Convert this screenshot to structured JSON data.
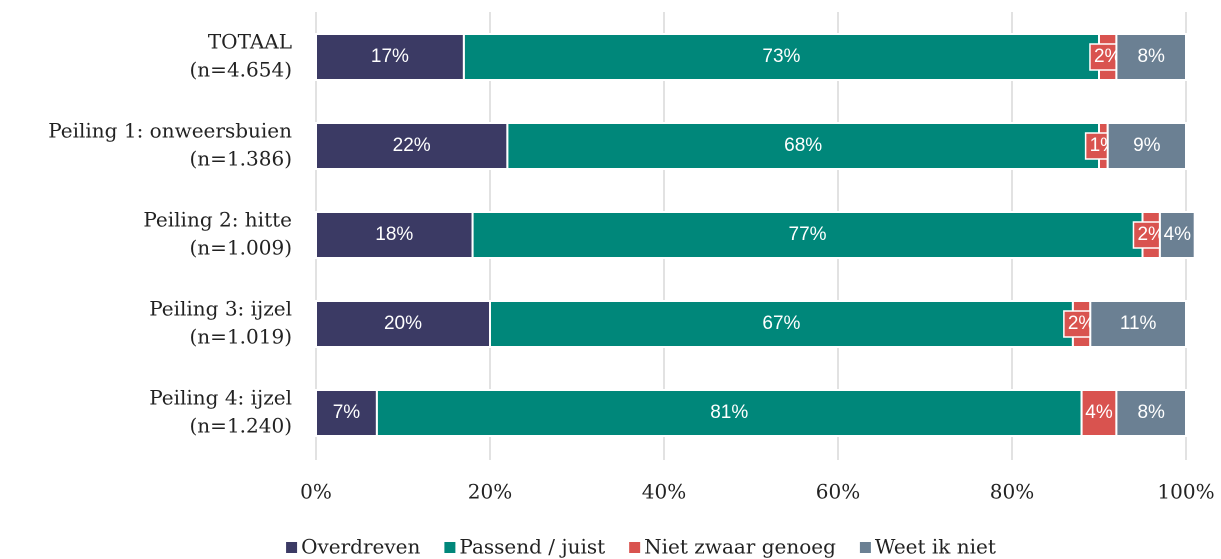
{
  "chart_data": {
    "type": "stacked-bar-horizontal",
    "categories": [
      [
        "TOTAAL",
        "(n=4.654)"
      ],
      [
        "Peiling 1: onweersbuien",
        "(n=1.386)"
      ],
      [
        "Peiling 2: hitte",
        "(n=1.009)"
      ],
      [
        "Peiling 3: ijzel",
        "(n=1.019)"
      ],
      [
        "Peiling 4: ijzel",
        "(n=1.240)"
      ]
    ],
    "series": [
      {
        "name": "Overdreven",
        "color": "#3b3a64",
        "values": [
          17,
          22,
          18,
          20,
          7
        ],
        "value_labels": [
          "17%",
          "22%",
          "18%",
          "20%",
          "7%"
        ]
      },
      {
        "name": "Passend / juist",
        "color": "#00877a",
        "values": [
          73,
          68,
          77,
          67,
          81
        ],
        "value_labels": [
          "73%",
          "68%",
          "77%",
          "67%",
          "81%"
        ]
      },
      {
        "name": "Niet zwaar genoeg",
        "color": "#d9534f",
        "values": [
          2,
          1,
          2,
          2,
          4
        ],
        "value_labels": [
          "2%",
          "1%",
          "2%",
          "2%",
          "4%"
        ]
      },
      {
        "name": "Weet ik niet",
        "color": "#6b8093",
        "values": [
          8,
          9,
          4,
          11,
          8
        ],
        "value_labels": [
          "8%",
          "9%",
          "4%",
          "11%",
          "8%"
        ]
      }
    ],
    "xlim": [
      0,
      100
    ],
    "xticks": [
      {
        "value": 0,
        "label": "0%"
      },
      {
        "value": 20,
        "label": "20%"
      },
      {
        "value": 40,
        "label": "40%"
      },
      {
        "value": 60,
        "label": "60%"
      },
      {
        "value": 80,
        "label": "80%"
      },
      {
        "value": 100,
        "label": "100%"
      }
    ],
    "grid": true,
    "legend": "bottom"
  }
}
